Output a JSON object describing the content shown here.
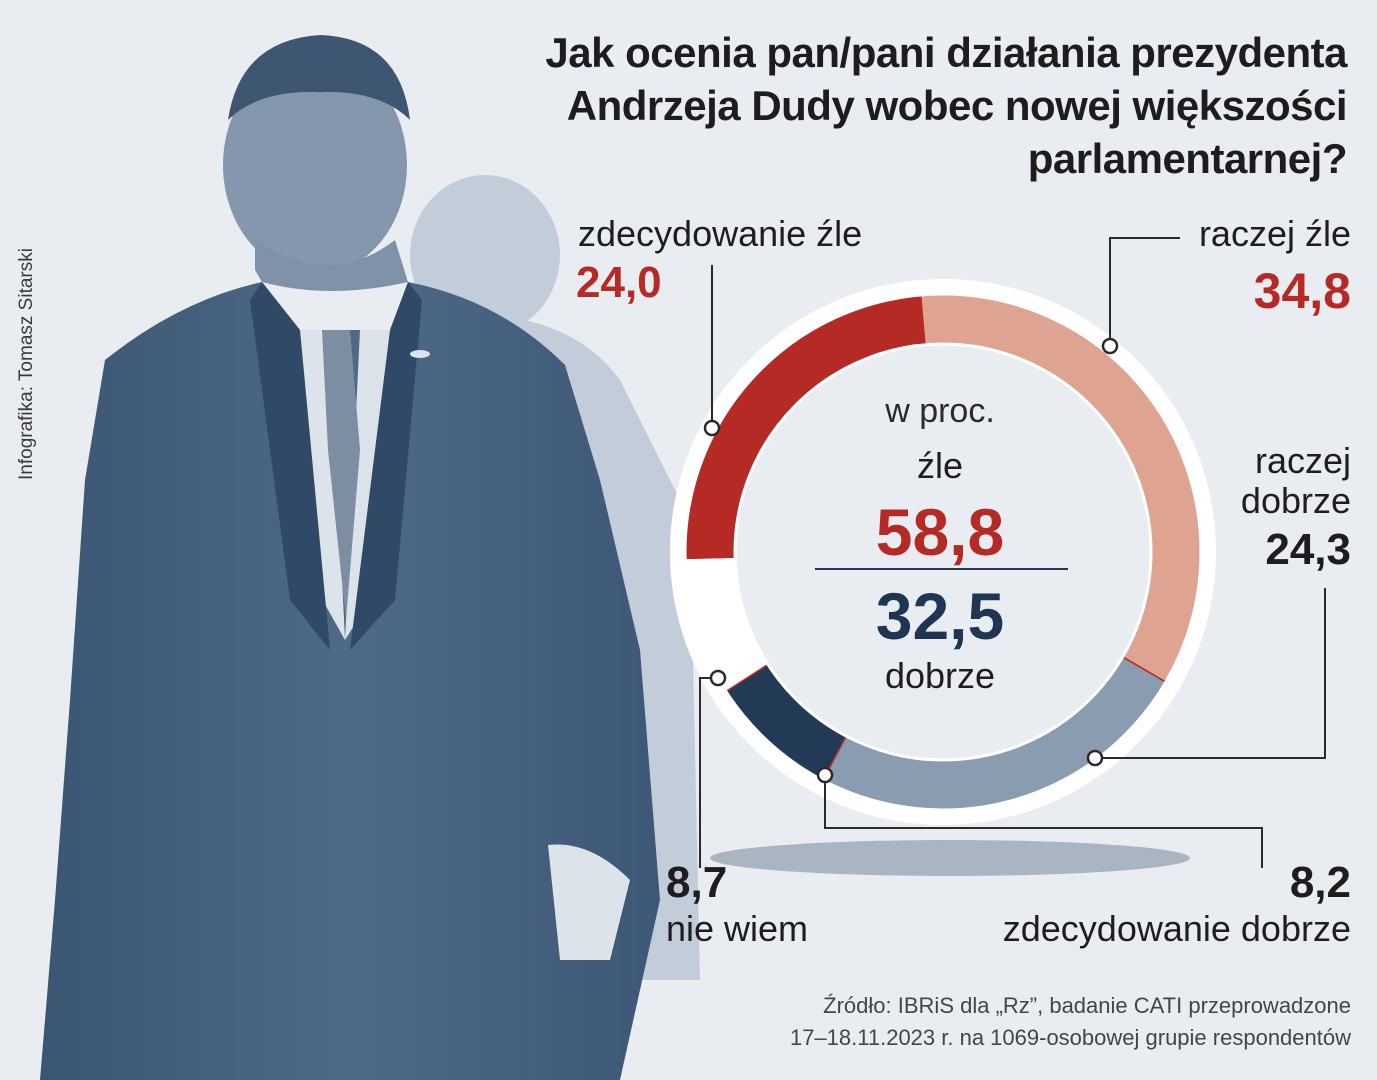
{
  "title_lines": [
    "Jak ocenia pan/pani działania prezydenta",
    "Andrzeja Dudy wobec nowej większości",
    "parlamentarnej?"
  ],
  "credit": "Infografika: Tomasz Sitarski",
  "center": {
    "unit": "w proc.",
    "bad_label": "źle",
    "bad_value": "58,8",
    "good_value": "32,5",
    "good_label": "dobrze"
  },
  "labels": {
    "definitely_bad": {
      "name": "zdecydowanie źle",
      "value": "24,0"
    },
    "rather_bad": {
      "name": "raczej źle",
      "value": "34,8"
    },
    "rather_good": {
      "name_line1": "raczej",
      "name_line2": "dobrze",
      "value": "24,3"
    },
    "definitely_good": {
      "name": "zdecydowanie dobrze",
      "value": "8,2"
    },
    "dont_know": {
      "name": "nie wiem",
      "value": "8,7"
    }
  },
  "source_lines": [
    "Źródło: IBRiS dla „Rz”, badanie CATI przeprowadzone",
    "17–18.11.2023 r. na 1069-osobowej grupie respondentów"
  ],
  "colors": {
    "definitely_bad": "#b52a24",
    "rather_bad": "#dfa491",
    "rather_good": "#8a9cb0",
    "definitely_good": "#233a56",
    "dont_know": "#ffffff",
    "background": "#e9edf2"
  },
  "photo": {
    "description_icon": "person-silhouette-icon"
  },
  "chart_data": {
    "type": "pie",
    "donut": true,
    "unit": "w proc.",
    "categories": [
      "raczej źle",
      "raczej dobrze",
      "zdecydowanie dobrze",
      "nie wiem",
      "zdecydowanie źle"
    ],
    "values": [
      34.8,
      24.3,
      8.2,
      8.7,
      24.0
    ],
    "colors": [
      "#dfa491",
      "#8a9cb0",
      "#233a56",
      "#ffffff",
      "#b52a24"
    ],
    "summary": {
      "źle": 58.8,
      "dobrze": 32.5
    }
  }
}
